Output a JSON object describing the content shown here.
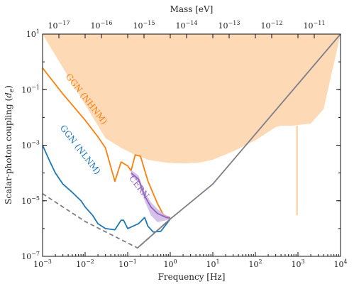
{
  "chart_data": {
    "type": "line",
    "xlabel": "Frequency [Hz]",
    "ylabel": "Scalar-photon coupling ($d_e$)",
    "top_xlabel": "Mass [eV]",
    "xscale": "log",
    "yscale": "log",
    "xlim": [
      0.001,
      10000
    ],
    "ylim": [
      1e-07,
      10
    ],
    "x_ticks": [
      {
        "value": 0.001,
        "label": "10^-3"
      },
      {
        "value": 0.01,
        "label": "10^-2"
      },
      {
        "value": 0.1,
        "label": "10^-1"
      },
      {
        "value": 1,
        "label": "10^0"
      },
      {
        "value": 10,
        "label": "10^1"
      },
      {
        "value": 100,
        "label": "10^2"
      },
      {
        "value": 1000,
        "label": "10^3"
      },
      {
        "value": 10000,
        "label": "10^4"
      }
    ],
    "y_ticks": [
      {
        "value": 1e-07,
        "label": "10^-7"
      },
      {
        "value": 1e-05,
        "label": "10^-5"
      },
      {
        "value": 0.001,
        "label": "10^-3"
      },
      {
        "value": 0.1,
        "label": "10^-1"
      },
      {
        "value": 10,
        "label": "10^1"
      }
    ],
    "top_ticks": [
      {
        "mass": 1e-17,
        "label": "10^-17"
      },
      {
        "mass": 1e-16,
        "label": "10^-16"
      },
      {
        "mass": 1e-15,
        "label": "10^-15"
      },
      {
        "mass": 1e-14,
        "label": "10^-14"
      },
      {
        "mass": 1e-13,
        "label": "10^-13"
      },
      {
        "mass": 1e-12,
        "label": "10^-12"
      },
      {
        "mass": 1e-11,
        "label": "10^-11"
      }
    ],
    "mass_per_hz": 4.1357e-15,
    "excluded_region": {
      "color": "#fdd9b5",
      "lower_boundary": [
        [
          0.001,
          10
        ],
        [
          0.03,
          0.0018
        ],
        [
          0.07,
          0.0008
        ],
        [
          0.15,
          0.00045
        ],
        [
          0.3,
          0.0003
        ],
        [
          0.6,
          0.00025
        ],
        [
          1,
          0.00023
        ],
        [
          2,
          0.00022
        ],
        [
          5,
          0.00024
        ],
        [
          10,
          0.0003
        ],
        [
          30,
          0.0006
        ],
        [
          100,
          0.0015
        ],
        [
          200,
          0.003
        ],
        [
          300,
          0.0045
        ],
        [
          400,
          0.005
        ],
        [
          700,
          0.005
        ],
        [
          2000,
          0.006
        ],
        [
          4000,
          0.02
        ],
        [
          10000,
          10
        ]
      ]
    },
    "excluded_spike": {
      "color": "#fdd9b5",
      "x": [
        900,
        1000
      ],
      "y": [
        3e-06,
        0.005
      ]
    },
    "series": [
      {
        "name": "GGN (NHNM)",
        "color": "#ff7f0e",
        "points": [
          [
            0.001,
            0.6
          ],
          [
            0.003,
            0.07
          ],
          [
            0.01,
            0.008
          ],
          [
            0.02,
            0.002
          ],
          [
            0.03,
            0.0008
          ],
          [
            0.05,
            5e-05
          ],
          [
            0.07,
            0.00025
          ],
          [
            0.1,
            0.00018
          ],
          [
            0.12,
            0.00012
          ],
          [
            0.15,
            0.00045
          ],
          [
            0.2,
            0.0004
          ],
          [
            0.3,
            5e-05
          ],
          [
            0.5,
            8e-06
          ],
          [
            0.7,
            3e-06
          ],
          [
            1,
            2.5e-06
          ]
        ]
      },
      {
        "name": "GGN (NLNM)",
        "color": "#1f77b4",
        "points": [
          [
            0.001,
            0.001
          ],
          [
            0.0015,
            0.00025
          ],
          [
            0.002,
            0.0001
          ],
          [
            0.003,
            4e-05
          ],
          [
            0.005,
            2e-05
          ],
          [
            0.008,
            1e-05
          ],
          [
            0.01,
            6e-06
          ],
          [
            0.015,
            3e-06
          ],
          [
            0.02,
            1.5e-06
          ],
          [
            0.03,
            1e-06
          ],
          [
            0.05,
            9e-07
          ],
          [
            0.07,
            2e-06
          ],
          [
            0.08,
            2e-06
          ],
          [
            0.1,
            1e-06
          ],
          [
            0.13,
            1.2e-06
          ],
          [
            0.18,
            1.5e-06
          ],
          [
            0.25,
            2.5e-06
          ],
          [
            0.3,
            1.2e-06
          ],
          [
            0.4,
            7.5e-07
          ],
          [
            0.6,
            8e-07
          ],
          [
            1,
            2.2e-06
          ]
        ]
      },
      {
        "name": "CERN",
        "color": "#9467bd",
        "band_color": "#c9b3e6",
        "points": [
          [
            0.12,
            0.0001
          ],
          [
            0.18,
            6e-05
          ],
          [
            0.25,
            1.5e-05
          ],
          [
            0.35,
            6e-06
          ],
          [
            0.5,
            3.5e-06
          ],
          [
            0.8,
            2.5e-06
          ],
          [
            1,
            2.4e-06
          ]
        ],
        "band_upper": [
          [
            0.12,
            0.00013
          ],
          [
            0.18,
            8e-05
          ],
          [
            0.25,
            2e-05
          ],
          [
            0.35,
            9e-06
          ],
          [
            0.5,
            5e-06
          ],
          [
            0.8,
            3e-06
          ],
          [
            1,
            2.7e-06
          ]
        ],
        "band_lower": [
          [
            0.12,
            8e-05
          ],
          [
            0.18,
            4.5e-05
          ],
          [
            0.25,
            1e-05
          ],
          [
            0.35,
            3e-06
          ],
          [
            0.5,
            1.7e-06
          ],
          [
            0.8,
            2e-06
          ],
          [
            1,
            2.2e-06
          ]
        ]
      },
      {
        "name": "",
        "color": "#7e7e88",
        "style": "solid",
        "points": [
          [
            0.17,
            2e-07
          ],
          [
            1,
            2.2e-06
          ],
          [
            10,
            4e-05
          ],
          [
            10000,
            10
          ]
        ]
      },
      {
        "name": "",
        "color": "#808080",
        "style": "dashed",
        "points": [
          [
            0.001,
            1.8e-05
          ],
          [
            0.01,
            1.8e-06
          ],
          [
            0.17,
            2e-07
          ],
          [
            1,
            2.2e-06
          ]
        ]
      }
    ],
    "annotations": [
      {
        "text": "GGN (NHNM)",
        "color": "#ff7f0e",
        "x": 0.0095,
        "y": 0.04,
        "angle": 52
      },
      {
        "text": "GGN (NLNM)",
        "color": "#1f77b4",
        "x": 0.0068,
        "y": 0.0006,
        "angle": 52
      },
      {
        "text": "CERN",
        "color": "#9467bd",
        "x": 0.165,
        "y": 2.7e-05,
        "angle": 52
      }
    ]
  }
}
